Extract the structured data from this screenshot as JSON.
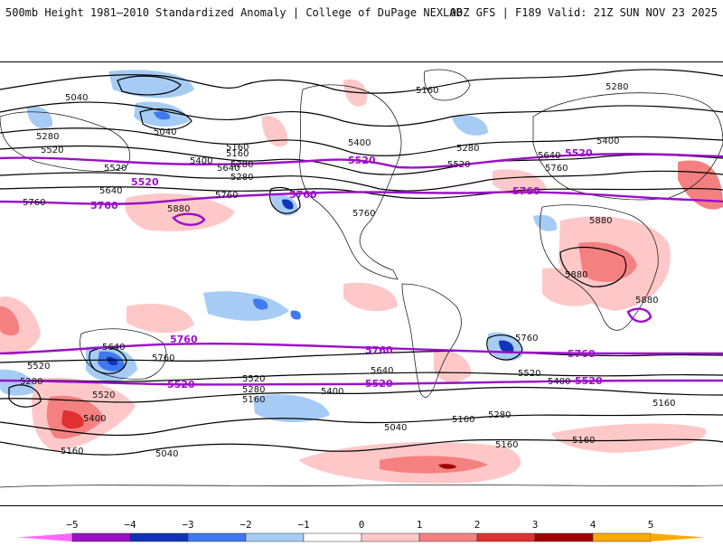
{
  "header": {
    "title": "500mb Height 1981–2010 Standardized Anomaly | College of DuPage NEXLAB",
    "run_info": "00Z GFS | F189 Valid: 21Z SUN NOV 23 2025"
  },
  "colorbar": {
    "ticks": [
      "−5",
      "−4",
      "−3",
      "−2",
      "−1",
      "0",
      "1",
      "2",
      "3",
      "4",
      "5"
    ],
    "colors": [
      "#ff66ff",
      "#9b10c9",
      "#1133bb",
      "#3f78f0",
      "#a6ccf5",
      "#ffffff",
      "#ffc8c8",
      "#f58080",
      "#e03030",
      "#a00000",
      "#ffaa00"
    ]
  },
  "contour_labels": [
    "5040",
    "5040",
    "5160",
    "5280",
    "5520",
    "5280",
    "5400",
    "5160",
    "5280",
    "5520",
    "5640",
    "5760",
    "5880",
    "5400",
    "5160",
    "5280",
    "5520",
    "5640",
    "5760",
    "5280",
    "5400",
    "5760",
    "5880",
    "5880",
    "5880",
    "5640",
    "5760",
    "5760",
    "5520",
    "5280",
    "5640",
    "5520",
    "5400",
    "5160",
    "5040",
    "5280",
    "5160",
    "5520",
    "5400",
    "5640",
    "5160",
    "5160",
    "5160",
    "5040",
    "5280",
    "5760",
    "5520",
    "5400",
    "5160"
  ],
  "key_contours": {
    "c5520": "5520",
    "c5760": "5760"
  }
}
